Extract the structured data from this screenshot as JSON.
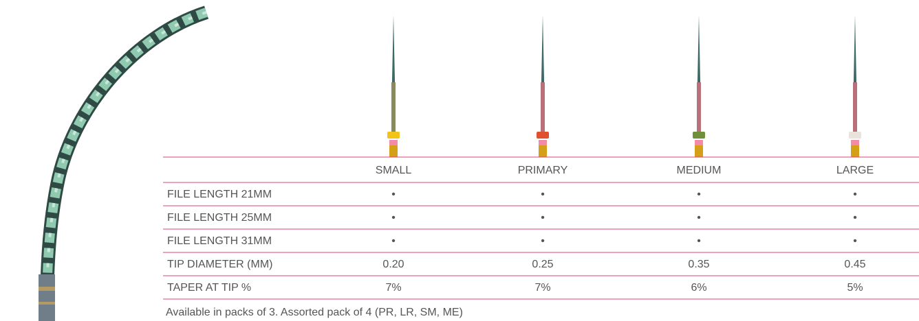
{
  "table": {
    "columns": [
      "SMALL",
      "PRIMARY",
      "MEDIUM",
      "LARGE"
    ],
    "rows": [
      {
        "label": "FILE LENGTH 21MM",
        "cells": [
          "•",
          "•",
          "•",
          "•"
        ]
      },
      {
        "label": "FILE LENGTH 25MM",
        "cells": [
          "•",
          "•",
          "•",
          "•"
        ]
      },
      {
        "label": "FILE LENGTH 31MM",
        "cells": [
          "•",
          "•",
          "•",
          "•"
        ]
      },
      {
        "label": "TIP DIAMETER (MM)",
        "cells": [
          "0.20",
          "0.25",
          "0.35",
          "0.45"
        ]
      },
      {
        "label": "TAPER AT TIP %",
        "cells": [
          "7%",
          "7%",
          "6%",
          "5%"
        ]
      }
    ],
    "footnote": "Available in packs of 3. Assorted pack of 4 (PR, LR, SM, ME)"
  }
}
